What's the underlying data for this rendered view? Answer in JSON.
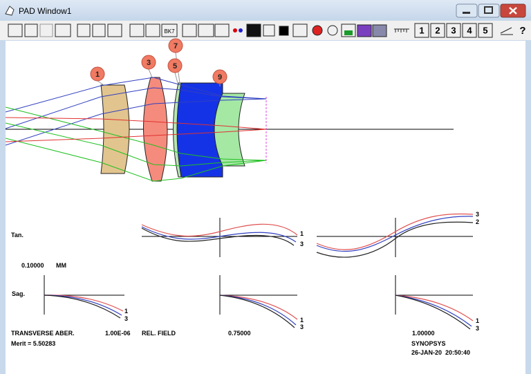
{
  "window": {
    "title": "PAD Window1"
  },
  "toolbar": {
    "bk7": "BK7",
    "pages": [
      "1",
      "2",
      "3",
      "4",
      "5"
    ]
  },
  "lens_labels": [
    "1",
    "3",
    "5",
    "7",
    "9"
  ],
  "plots": {
    "tan_label": "Tan.",
    "scale": "0.10000",
    "scale_unit": "MM",
    "sag_label": "Sag.",
    "tan_curves": [
      [
        "1",
        "3"
      ],
      [
        "3",
        "2"
      ]
    ],
    "sag_curves": [
      [
        "1",
        "3"
      ],
      [
        "1",
        "3"
      ],
      [
        "1",
        "3"
      ]
    ]
  },
  "footer": {
    "transverse": "TRANSVERSE ABER.",
    "wavelength": "1.00E-06",
    "rel_field": "REL. FIELD",
    "fields": [
      "0.75000",
      "1.00000"
    ],
    "merit": "Merit = 5.50283",
    "program": "SYNOPSYS",
    "date": "26-JAN-20  20:50:40"
  }
}
